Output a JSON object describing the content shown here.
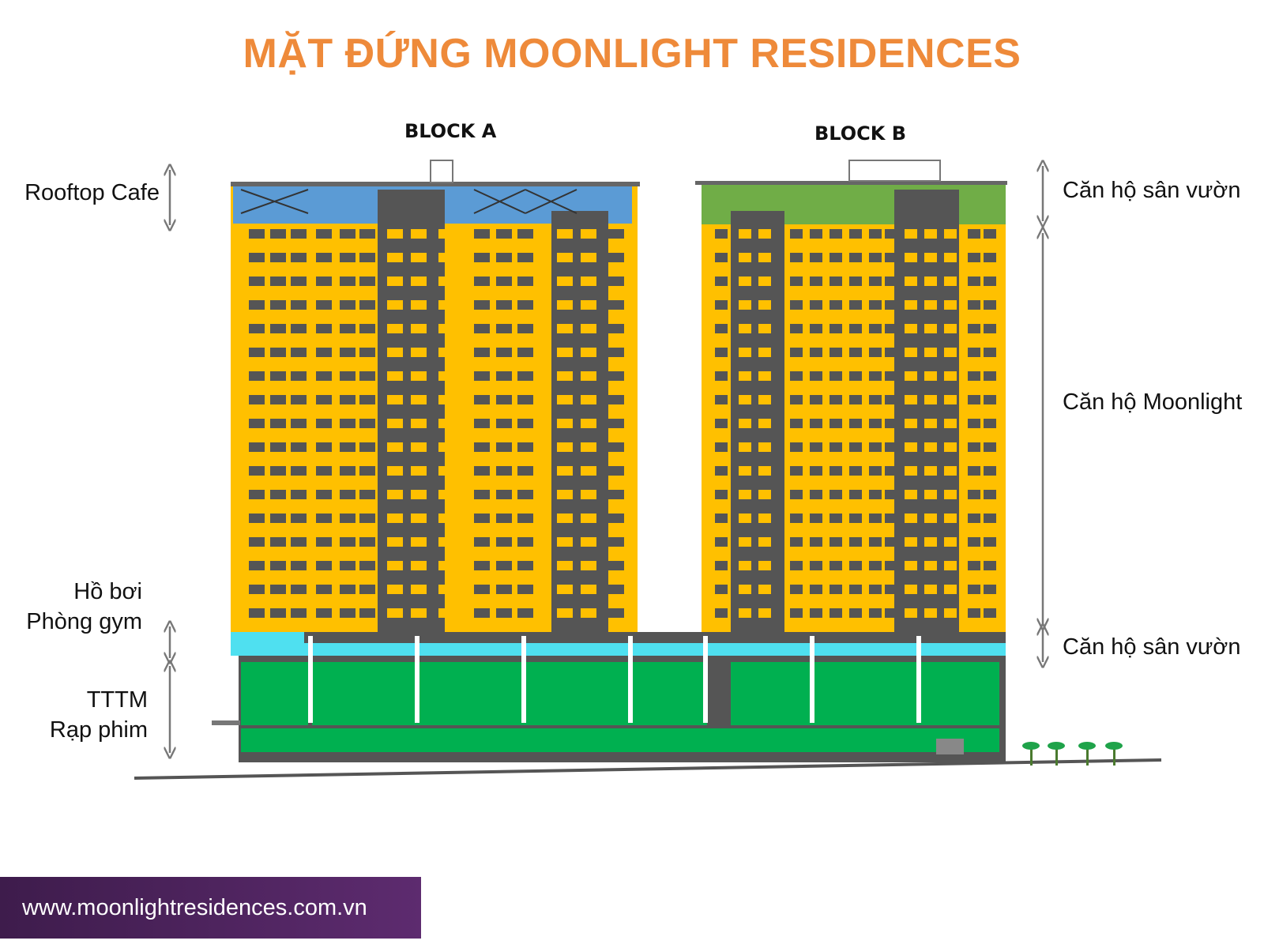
{
  "title": "MẶT ĐỨNG MOONLIGHT RESIDENCES",
  "blocks": {
    "a": "BLOCK A",
    "b": "BLOCK B"
  },
  "labels": {
    "rooftop": "Rooftop Cafe",
    "pool": "Hồ bơi",
    "gym": "Phòng gym",
    "mall": "TTTM",
    "cinema": "Rạp phim",
    "garden_top": "Căn hộ sân vườn",
    "moonlight": "Căn hộ Moonlight",
    "garden_bottom": "Căn hộ sân vườn"
  },
  "footer": {
    "url": "www.moonlightresidences.com.vn"
  },
  "colors": {
    "title": "#ee8a3a",
    "apartments": "#ffc000",
    "rooftop": "#5b9bd5",
    "garden": "#70ad47",
    "podium": "#00b050",
    "amenity": "#4fe0f0",
    "structure": "#555555",
    "footer": "#4a2159"
  }
}
